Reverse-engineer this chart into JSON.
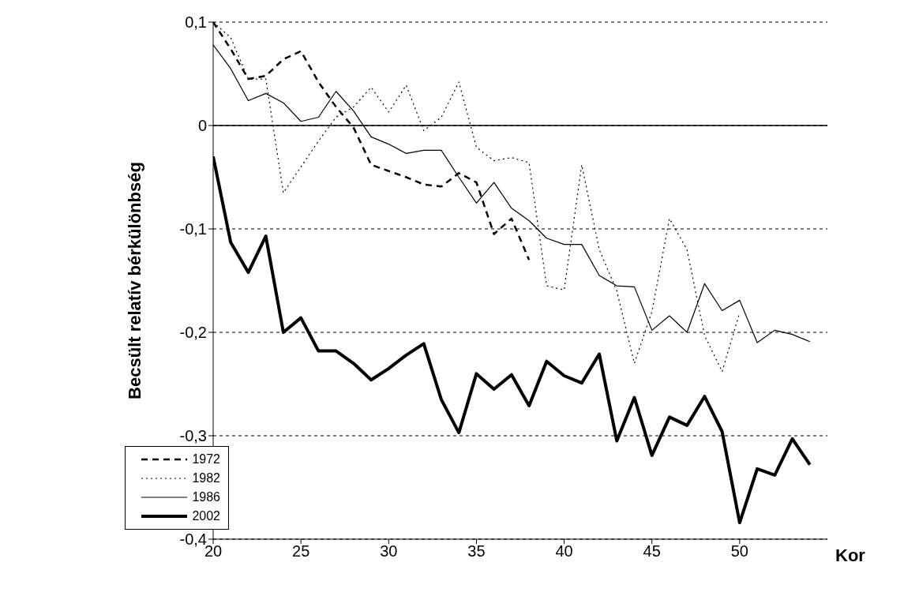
{
  "chart_data": {
    "type": "line",
    "xlabel": "Kor",
    "ylabel": "Becsült relatív bérkülönbség",
    "x": [
      20,
      21,
      22,
      23,
      24,
      25,
      26,
      27,
      28,
      29,
      30,
      31,
      32,
      33,
      34,
      35,
      36,
      37,
      38,
      39,
      40,
      41,
      42,
      43,
      44,
      45,
      46,
      47,
      48,
      49,
      50,
      51,
      52,
      53,
      54
    ],
    "series": [
      {
        "name": "1972",
        "color": "#000000",
        "line_style": "dashed",
        "values": [
          0.1,
          0.074,
          0.045,
          0.048,
          0.064,
          0.072,
          0.042,
          0.018,
          -0.002,
          -0.038,
          -0.044,
          -0.05,
          -0.057,
          -0.059,
          -0.046,
          -0.055,
          -0.105,
          -0.09,
          -0.13,
          null,
          null,
          null,
          null,
          null,
          null,
          null,
          null,
          null,
          null,
          null,
          null,
          null,
          null,
          null,
          null
        ]
      },
      {
        "name": "1982",
        "color": "#000000",
        "line_style": "dotted",
        "values": [
          0.1,
          0.085,
          0.045,
          0.045,
          -0.065,
          -0.04,
          -0.015,
          0.008,
          0.018,
          0.037,
          0.013,
          0.039,
          -0.005,
          0.008,
          0.042,
          -0.021,
          -0.034,
          -0.031,
          -0.036,
          -0.155,
          -0.159,
          -0.038,
          -0.12,
          -0.16,
          -0.23,
          -0.18,
          -0.09,
          -0.12,
          -0.203,
          -0.238,
          -0.181,
          null,
          null,
          null,
          null
        ]
      },
      {
        "name": "1986",
        "color": "#000000",
        "line_style": "solid",
        "values": [
          0.078,
          0.055,
          0.024,
          0.031,
          0.022,
          0.004,
          0.008,
          0.033,
          0.014,
          -0.011,
          -0.018,
          -0.027,
          -0.024,
          -0.024,
          -0.05,
          -0.075,
          -0.055,
          -0.08,
          -0.092,
          -0.109,
          -0.115,
          -0.115,
          -0.145,
          -0.155,
          -0.156,
          -0.198,
          -0.184,
          -0.2,
          -0.153,
          -0.179,
          -0.169,
          -0.21,
          -0.198,
          -0.202,
          -0.209
        ]
      },
      {
        "name": "2002",
        "color": "#000000",
        "line_style": "solid",
        "values": [
          -0.03,
          -0.113,
          -0.142,
          -0.107,
          -0.2,
          -0.186,
          -0.218,
          -0.218,
          -0.23,
          -0.246,
          -0.235,
          -0.222,
          -0.211,
          -0.265,
          -0.297,
          -0.24,
          -0.255,
          -0.241,
          -0.271,
          -0.228,
          -0.242,
          -0.249,
          -0.221,
          -0.305,
          -0.263,
          -0.319,
          -0.282,
          -0.29,
          -0.262,
          -0.296,
          -0.384,
          -0.332,
          -0.338,
          -0.303,
          -0.328
        ]
      }
    ],
    "xlim": [
      20,
      55
    ],
    "xticks": [
      20,
      25,
      30,
      35,
      40,
      45,
      50
    ],
    "ylim": [
      -0.4,
      0.1
    ],
    "yticks": [
      {
        "value": -0.4,
        "label": "-0,4"
      },
      {
        "value": -0.3,
        "label": "-0,3"
      },
      {
        "value": -0.2,
        "label": "-0,2"
      },
      {
        "value": -0.1,
        "label": "-0,1"
      },
      {
        "value": 0,
        "label": "0"
      },
      {
        "value": 0.1,
        "label": "0,1"
      }
    ],
    "grid": "y",
    "legend": "bottom left",
    "marker": "none"
  }
}
